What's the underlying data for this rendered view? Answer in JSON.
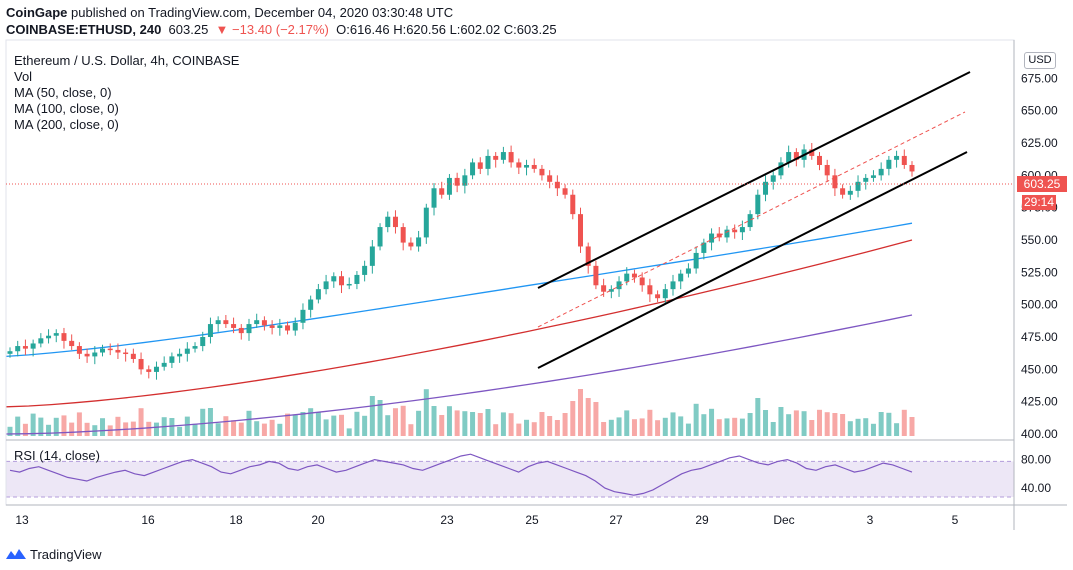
{
  "header": {
    "publisher": "CoinGape",
    "published_text": "published on TradingView.com, December 04, 2020 03:30:48 UTC",
    "symbol": "COINBASE:ETHUSD, 240",
    "last": "603.25",
    "change": "▼ −13.40 (−2.17%)",
    "ohlc": "O:616.46 H:620.56 L:602.02 C:603.25"
  },
  "legend": {
    "title": "Ethereum / U.S. Dollar, 4h, COINBASE",
    "vol": "Vol",
    "ma50": "MA (50, close, 0)",
    "ma100": "MA (100, close, 0)",
    "ma200": "MA (200, close, 0)"
  },
  "rsi_label": "RSI (14, close)",
  "price_tag": "603.25",
  "time_tag": "29:14",
  "currency_button": "USD",
  "footer_brand": "TradingView",
  "colors": {
    "up": "#26a69a",
    "down": "#ef5350",
    "vol_up": "#80cbc4",
    "vol_down": "#f7a8a6",
    "ma50": "#2196f3",
    "ma100": "#d32f2f",
    "ma200": "#7e57c2",
    "rsi": "#7e57c2",
    "channel": "#000000"
  },
  "chart_data": {
    "type": "candlestick",
    "title": "Ethereum / U.S. Dollar, 4h, COINBASE",
    "y_ticks": [
      "675.00",
      "650.00",
      "625.00",
      "600.00",
      "575.00",
      "550.00",
      "525.00",
      "500.00",
      "475.00",
      "450.00",
      "425.00",
      "400.00"
    ],
    "ylim": [
      400,
      700
    ],
    "x_ticks": [
      "13",
      "16",
      "18",
      "20",
      "23",
      "25",
      "27",
      "29",
      "Dec",
      "3",
      "5"
    ],
    "last_price": 603.25,
    "closes_approx": [
      464,
      468,
      466,
      470,
      474,
      476,
      478,
      472,
      468,
      462,
      460,
      463,
      466,
      465,
      463,
      462,
      458,
      450,
      448,
      452,
      455,
      460,
      462,
      466,
      468,
      475,
      485,
      488,
      485,
      482,
      478,
      485,
      488,
      484,
      482,
      484,
      480,
      486,
      496,
      504,
      512,
      518,
      522,
      515,
      516,
      523,
      530,
      545,
      560,
      568,
      560,
      548,
      545,
      552,
      575,
      590,
      585,
      598,
      592,
      600,
      610,
      605,
      615,
      612,
      618,
      610,
      606,
      608,
      605,
      600,
      595,
      590,
      585,
      570,
      545,
      530,
      515,
      510,
      512,
      518,
      524,
      521,
      515,
      508,
      505,
      512,
      518,
      524,
      528,
      540,
      548,
      555,
      552,
      558,
      556,
      560,
      570,
      585,
      595,
      600,
      610,
      618,
      612,
      620,
      615,
      608,
      600,
      590,
      585,
      588,
      595,
      598,
      600,
      605,
      612,
      615,
      608,
      603
    ],
    "ma50": [
      {
        "label": "MA 50",
        "start": 460,
        "end": 563
      }
    ],
    "ma100": [
      {
        "label": "MA 100",
        "start": 421,
        "end": 550
      }
    ],
    "ma200": [
      {
        "label": "MA 200",
        "start": 400,
        "end": 492
      }
    ],
    "channel": {
      "upper": [
        [
          538,
          288
        ],
        [
          970,
          72
        ]
      ],
      "lower": [
        [
          538,
          368
        ],
        [
          967,
          152
        ]
      ],
      "mid_dashed": [
        [
          538,
          327
        ],
        [
          965,
          112
        ]
      ]
    },
    "rsi": {
      "label": "RSI (14, close)",
      "y_ticks": [
        "80.00",
        "40.00"
      ],
      "values": [
        60,
        58,
        62,
        64,
        60,
        56,
        52,
        50,
        48,
        52,
        55,
        58,
        60,
        56,
        54,
        58,
        62,
        66,
        70,
        72,
        68,
        64,
        58,
        56,
        60,
        64,
        66,
        70,
        68,
        62,
        60,
        64,
        66,
        62,
        58,
        60,
        64,
        68,
        72,
        70,
        68,
        66,
        62,
        60,
        64,
        68,
        72,
        76,
        78,
        74,
        70,
        66,
        62,
        58,
        64,
        68,
        70,
        66,
        62,
        58,
        54,
        48,
        40,
        36,
        34,
        32,
        34,
        38,
        44,
        50,
        56,
        60,
        62,
        66,
        70,
        74,
        76,
        72,
        68,
        66,
        70,
        72,
        68,
        62,
        60,
        64,
        66,
        62,
        58,
        60,
        64,
        68,
        66,
        62,
        58
      ]
    }
  }
}
